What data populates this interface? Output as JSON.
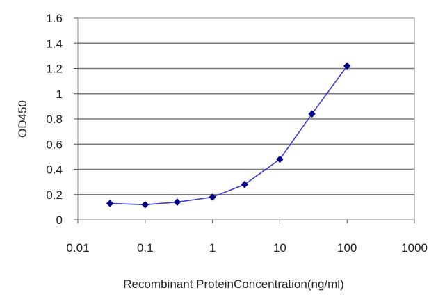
{
  "chart_data": {
    "type": "scatter",
    "title": "",
    "xlabel": "Recombinant ProteinConcentration(ng/ml)",
    "ylabel": "OD450",
    "x_scale": "log",
    "xlim": [
      0.01,
      1000
    ],
    "ylim": [
      0,
      1.6
    ],
    "x_ticks": [
      "0.01",
      "0.1",
      "1",
      "10",
      "100",
      "1000"
    ],
    "y_ticks": [
      "0",
      "0.2",
      "0.4",
      "0.6",
      "0.8",
      "1",
      "1.2",
      "1.4",
      "1.6"
    ],
    "grid": "horizontal",
    "legend": "none",
    "series": [
      {
        "x": [
          0.03,
          0.1,
          0.3,
          1,
          3,
          10,
          30,
          100
        ],
        "y": [
          0.13,
          0.12,
          0.14,
          0.18,
          0.28,
          0.48,
          0.84,
          1.22
        ],
        "marker_color": "#00008b",
        "line_color": "#3b3bd4"
      }
    ]
  }
}
